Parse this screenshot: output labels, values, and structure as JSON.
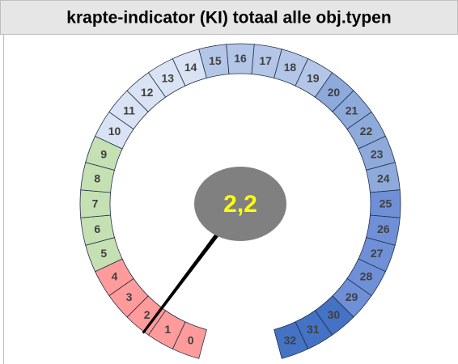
{
  "chart_data": {
    "type": "gauge",
    "title": "krapte-indicator (KI) totaal alle obj.typen",
    "categories": [
      "0",
      "1",
      "2",
      "3",
      "4",
      "5",
      "6",
      "7",
      "8",
      "9",
      "10",
      "11",
      "12",
      "13",
      "14",
      "15",
      "16",
      "17",
      "18",
      "19",
      "20",
      "21",
      "22",
      "23",
      "24",
      "25",
      "26",
      "27",
      "28",
      "29",
      "30",
      "31",
      "32"
    ],
    "values": [
      1,
      1,
      1,
      1,
      1,
      1,
      1,
      1,
      1,
      1,
      1,
      1,
      1,
      1,
      1,
      1,
      1,
      1,
      1,
      1,
      1,
      1,
      1,
      1,
      1,
      1,
      1,
      1,
      1,
      1,
      1,
      1,
      1
    ],
    "colors": [
      "#ff9b9b",
      "#ff9b9b",
      "#ff9b9b",
      "#ff9b9b",
      "#ff9b9b",
      "#c5e0b3",
      "#c5e0b3",
      "#c5e0b3",
      "#c5e0b3",
      "#c5e0b3",
      "#dae3f3",
      "#dae3f3",
      "#dae3f3",
      "#dae3f3",
      "#dae3f3",
      "#b4c6e7",
      "#b4c6e7",
      "#b4c6e7",
      "#b4c6e7",
      "#b4c6e7",
      "#8eaadb",
      "#8eaadb",
      "#8eaadb",
      "#8eaadb",
      "#8eaadb",
      "#6f90d6",
      "#6f90d6",
      "#6f90d6",
      "#6f90d6",
      "#6f90d6",
      "#4472c4",
      "#4472c4",
      "#4472c4"
    ],
    "value": 2.2,
    "value_label": "2,2",
    "value_label_color": "#ffff00",
    "center_color": "#808080",
    "needle_color": "#000000"
  }
}
